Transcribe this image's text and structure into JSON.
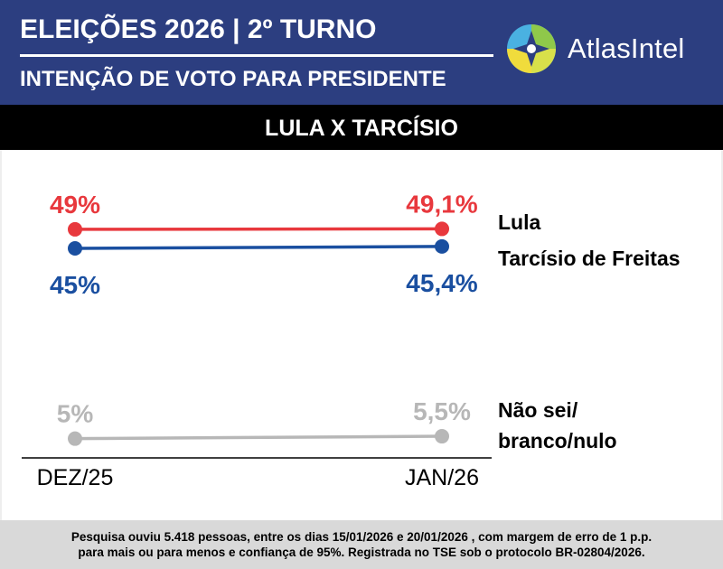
{
  "header": {
    "title": "ELEIÇÕES 2026 | 2º TURNO",
    "subtitle": "INTENÇÃO DE VOTO PARA PRESIDENTE",
    "brand": "AtlasIntel",
    "brand_colors": [
      "#4ab1e1",
      "#f0dc3c",
      "#8fc84a",
      "#2c3e80"
    ]
  },
  "banner": {
    "title": "LULA X TARCÍSIO"
  },
  "chart_data": {
    "type": "line",
    "x": [
      "DEZ/25",
      "JAN/26"
    ],
    "ylim": [
      0,
      60
    ],
    "grid": false,
    "legend": "right",
    "series": [
      {
        "name": "Lula",
        "values": [
          49,
          49.1
        ],
        "labels": [
          "49%",
          "49,1%"
        ],
        "color": "#e8383d",
        "label_position": "above"
      },
      {
        "name": "Tarcísio de Freitas",
        "values": [
          45,
          45.4
        ],
        "labels": [
          "45%",
          "45,4%"
        ],
        "color": "#1a4fa0",
        "label_position": "below"
      },
      {
        "name": "Não sei/ branco/nulo",
        "values": [
          5,
          5.5
        ],
        "labels": [
          "5%",
          "5,5%"
        ],
        "color": "#b7b7b7",
        "label_position": "above"
      }
    ]
  },
  "footer": {
    "line1": "Pesquisa ouviu 5.418 pessoas, entre os dias 15/01/2026 e 20/01/2026 , com margem de erro de 1 p.p.",
    "line2": "para mais ou para menos e confiança de 95%. Registrada no TSE sob o protocolo BR-02804/2026."
  }
}
